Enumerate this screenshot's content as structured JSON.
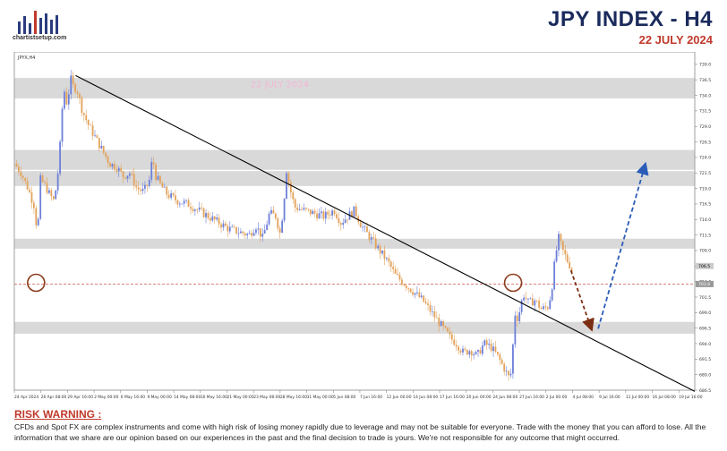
{
  "header": {
    "title": "JPY INDEX  -  H4",
    "date": "22 JULY 2024",
    "logo_text": "chartistsetup.com"
  },
  "colors": {
    "title": "#1a2a5c",
    "date": "#c0392b",
    "zone": "#d9d9d9",
    "trendline": "#000000",
    "candle_up": "#6c7fd8",
    "candle_down": "#e3a25a",
    "arrow_down": "#7b2d12",
    "arrow_up": "#2a5cb8",
    "circle": "#8b3a1a",
    "price_line": "#c0392b"
  },
  "chart_data": {
    "type": "candlestick",
    "symbol_label": "JPYX,H4",
    "watermark": "22 JULY 2024",
    "ylim": [
      686.5,
      741
    ],
    "y_ticks": [
      686.5,
      689.0,
      691.5,
      694.0,
      696.5,
      699.0,
      701.5,
      704.0,
      706.5,
      709.0,
      711.5,
      714.0,
      716.5,
      719.0,
      721.5,
      724.0,
      726.5,
      729.0,
      731.5,
      734.0,
      736.5,
      739.0
    ],
    "y_tick_labels": [
      "686.5",
      "689.0",
      "691.5",
      "694.0",
      "696.5",
      "699.0",
      "701.5",
      "704.0",
      "706.5",
      "709.0",
      "711.5",
      "714.0",
      "716.5",
      "719.0",
      "721.5",
      "724.0",
      "726.5",
      "729.0",
      "731.5",
      "734.0",
      "736.5",
      "739.0"
    ],
    "current_price": 703.6,
    "current_price_label": "703.6",
    "marker_price": 706.5,
    "marker_price_label": "706.5",
    "x_labels": [
      "24 Apr 2024",
      "26 Apr 08:00",
      "29 Apr 16:00",
      "2 May 00:00",
      "6 May 16:00",
      "9 May 00:00",
      "14 May 08:00",
      "16 May 16:00",
      "21 May 00:00",
      "23 May 08:00",
      "28 May 16:00",
      "31 May 00:00",
      "5 Jun 08:00",
      "7 Jun 16:00",
      "12 Jun 00:00",
      "14 Jun 08:00",
      "17 Jun 16:00",
      "20 Jun 00:00",
      "24 Jun 08:00",
      "27 Jun 16:00",
      "2 Jul 00:00",
      "4 Jul 08:00",
      "9 Jul 16:00",
      "11 Jul 00:00",
      "16 Jul 08:00",
      "19 Jul 16:00"
    ],
    "zones": [
      {
        "from": 733.5,
        "to": 736.8
      },
      {
        "from": 722.0,
        "to": 725.2
      },
      {
        "from": 719.4,
        "to": 721.8
      },
      {
        "from": 709.3,
        "to": 710.9
      },
      {
        "from": 695.6,
        "to": 697.5
      }
    ],
    "trendline": {
      "start": {
        "x": 0.09,
        "y": 737.2
      },
      "end": {
        "x": 1.0,
        "y": 686.3
      }
    },
    "circles": [
      {
        "x": 0.032,
        "y": 703.8
      },
      {
        "x": 0.733,
        "y": 703.8
      }
    ],
    "projection": {
      "down": {
        "from": {
          "x": 0.818,
          "y": 705.8
        },
        "to": {
          "x": 0.848,
          "y": 696.4
        }
      },
      "up": {
        "from": {
          "x": 0.858,
          "y": 696.4
        },
        "to": {
          "x": 0.927,
          "y": 722.8
        }
      }
    },
    "price_path": [
      [
        0.0,
        723.0
      ],
      [
        0.01,
        721.5
      ],
      [
        0.02,
        719.0
      ],
      [
        0.03,
        716.0
      ],
      [
        0.034,
        711.0
      ],
      [
        0.038,
        720.5
      ],
      [
        0.045,
        719.5
      ],
      [
        0.052,
        718.0
      ],
      [
        0.058,
        717.0
      ],
      [
        0.062,
        719.5
      ],
      [
        0.066,
        723.5
      ],
      [
        0.07,
        731.5
      ],
      [
        0.074,
        735.0
      ],
      [
        0.078,
        732.0
      ],
      [
        0.082,
        737.0
      ],
      [
        0.086,
        735.5
      ],
      [
        0.092,
        735.0
      ],
      [
        0.1,
        731.5
      ],
      [
        0.11,
        729.0
      ],
      [
        0.12,
        727.0
      ],
      [
        0.13,
        725.0
      ],
      [
        0.14,
        723.0
      ],
      [
        0.15,
        722.5
      ],
      [
        0.16,
        721.0
      ],
      [
        0.17,
        721.5
      ],
      [
        0.18,
        719.0
      ],
      [
        0.19,
        718.5
      ],
      [
        0.198,
        720.0
      ],
      [
        0.203,
        724.0
      ],
      [
        0.208,
        721.0
      ],
      [
        0.215,
        719.5
      ],
      [
        0.225,
        718.0
      ],
      [
        0.24,
        717.0
      ],
      [
        0.255,
        716.5
      ],
      [
        0.27,
        715.5
      ],
      [
        0.285,
        714.5
      ],
      [
        0.3,
        713.5
      ],
      [
        0.315,
        712.5
      ],
      [
        0.33,
        712.0
      ],
      [
        0.345,
        711.5
      ],
      [
        0.355,
        713.0
      ],
      [
        0.365,
        711.0
      ],
      [
        0.375,
        715.0
      ],
      [
        0.385,
        714.5
      ],
      [
        0.39,
        711.5
      ],
      [
        0.395,
        715.5
      ],
      [
        0.4,
        722.0
      ],
      [
        0.405,
        719.0
      ],
      [
        0.412,
        716.0
      ],
      [
        0.425,
        715.5
      ],
      [
        0.44,
        715.0
      ],
      [
        0.455,
        714.5
      ],
      [
        0.47,
        715.5
      ],
      [
        0.48,
        713.5
      ],
      [
        0.49,
        714.5
      ],
      [
        0.5,
        715.5
      ],
      [
        0.51,
        713.0
      ],
      [
        0.52,
        711.5
      ],
      [
        0.53,
        710.0
      ],
      [
        0.54,
        708.5
      ],
      [
        0.55,
        707.0
      ],
      [
        0.56,
        705.0
      ],
      [
        0.57,
        704.0
      ],
      [
        0.58,
        703.0
      ],
      [
        0.59,
        702.0
      ],
      [
        0.6,
        701.0
      ],
      [
        0.61,
        699.5
      ],
      [
        0.62,
        698.0
      ],
      [
        0.63,
        696.5
      ],
      [
        0.64,
        695.0
      ],
      [
        0.65,
        694.0
      ],
      [
        0.66,
        692.5
      ],
      [
        0.67,
        693.0
      ],
      [
        0.68,
        692.0
      ],
      [
        0.69,
        694.0
      ],
      [
        0.7,
        693.5
      ],
      [
        0.71,
        692.0
      ],
      [
        0.72,
        690.0
      ],
      [
        0.727,
        688.5
      ],
      [
        0.731,
        689.5
      ],
      [
        0.735,
        699.0
      ],
      [
        0.74,
        698.0
      ],
      [
        0.748,
        702.0
      ],
      [
        0.756,
        700.5
      ],
      [
        0.765,
        701.0
      ],
      [
        0.775,
        699.5
      ],
      [
        0.785,
        700.0
      ],
      [
        0.79,
        703.0
      ],
      [
        0.795,
        708.0
      ],
      [
        0.8,
        711.0
      ],
      [
        0.806,
        709.0
      ],
      [
        0.812,
        707.5
      ],
      [
        0.817,
        706.5
      ],
      [
        0.822,
        704.5
      ]
    ]
  },
  "risk": {
    "title": "RISK WARNING :",
    "body": "CFDs and Spot FX are complex instruments and come with high risk of losing money rapidly due to leverage and may not be suitable for everyone. Trade with the  money that you can afford to  lose. All the information that we  share are our opinion based on our experiences in the past and the final decision to trade is yours. We're not responsible for any outcome  that might occurred."
  }
}
